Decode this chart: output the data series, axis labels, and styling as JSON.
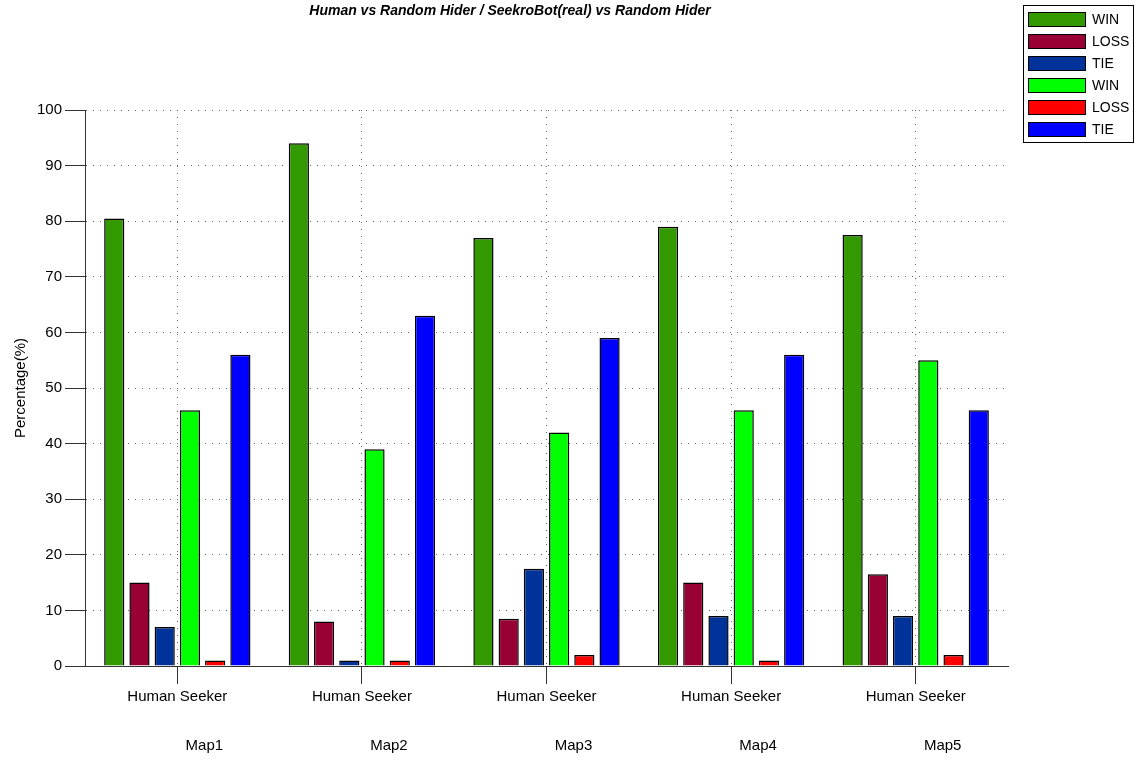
{
  "chart_data": {
    "type": "bar",
    "title": "Human vs Random Hider / SeekroBot(real) vs Random Hider",
    "ylabel": "Percentage(%)",
    "categories": [
      "Human Seeker",
      "Human Seeker",
      "Human Seeker",
      "Human Seeker",
      "Human Seeker"
    ],
    "series": [
      {
        "name": "WIN",
        "color": "#339900",
        "values": [
          80.5,
          94,
          77,
          79,
          77.5
        ]
      },
      {
        "name": "LOSS",
        "color": "#990033",
        "values": [
          15,
          8,
          8.5,
          15,
          16.5
        ]
      },
      {
        "name": "TIE",
        "color": "#003399",
        "values": [
          7,
          1,
          17.5,
          9,
          9
        ]
      },
      {
        "name": "WIN",
        "color": "#00ff00",
        "values": [
          46,
          39,
          42,
          46,
          55
        ]
      },
      {
        "name": "LOSS",
        "color": "#ff0000",
        "values": [
          1,
          1,
          2,
          1,
          2
        ]
      },
      {
        "name": "TIE",
        "color": "#0000ff",
        "values": [
          56,
          63,
          59,
          56,
          46
        ]
      }
    ],
    "annotations": [
      "Map1",
      "Map2",
      "Map3",
      "Map4",
      "Map5"
    ],
    "ylim": [
      0,
      100
    ],
    "yticks": [
      0,
      10,
      20,
      30,
      40,
      50,
      60,
      70,
      80,
      90,
      100
    ],
    "grid": true,
    "legend": "top right"
  }
}
